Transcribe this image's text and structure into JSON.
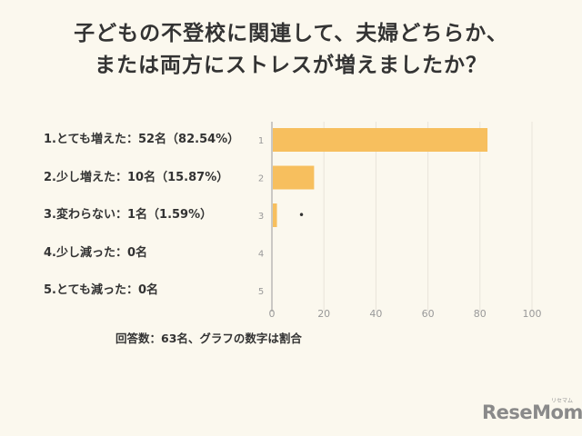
{
  "title": {
    "line1": "子どもの不登校に関連して、夫婦どちらか、",
    "line2": "または両方にストレスが増えましたか？"
  },
  "note": "回答数：63名、グラフの数字は割合",
  "logo": "ReseMom",
  "logo_kana": "リセマム",
  "colors": {
    "bar": "#f7bf5e",
    "background": "#fbf8ee",
    "text": "#333333",
    "axis": "#999999",
    "grid": "#e8e4da"
  },
  "chart_data": {
    "type": "bar",
    "orientation": "horizontal",
    "categories": [
      "1.とても増えた：52名（82.54%）",
      "2.少し増えた：10名（15.87%）",
      "3.変わらない：1名（1.59%）",
      "4.少し減った：0名",
      "5.とても減った：0名"
    ],
    "y_tick_labels": [
      "1",
      "2",
      "3",
      "4",
      "5"
    ],
    "values": [
      82.54,
      15.87,
      1.59,
      0,
      0
    ],
    "xlim": [
      0,
      100
    ],
    "x_ticks": [
      0,
      20,
      40,
      60,
      80,
      100
    ],
    "grid": true,
    "marker": {
      "category_index": 2,
      "x": 6.5,
      "symbol": "•"
    }
  }
}
